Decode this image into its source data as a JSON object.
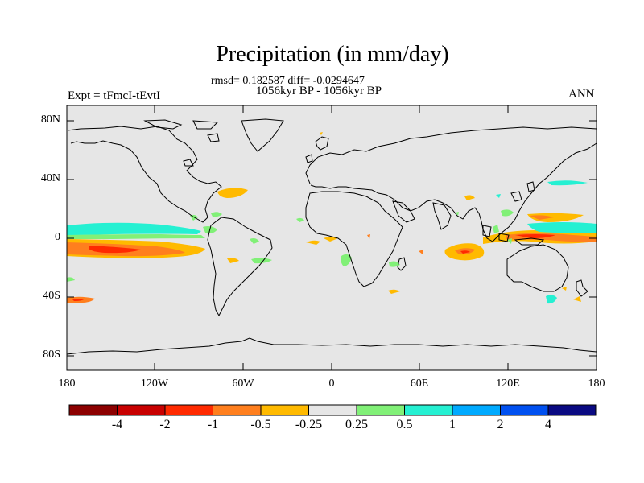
{
  "title": "Precipitation (in mm/day)",
  "stats": "rmsd= 0.182587 diff= -0.0294647",
  "period": "1056kyr BP - 1056kyr BP",
  "experiment": "Expt = tFmcI-tEvtI",
  "season": "ANN",
  "lat_labels": [
    "80N",
    "40N",
    "0",
    "40S",
    "80S"
  ],
  "lon_labels": [
    "180",
    "120W",
    "60W",
    "0",
    "60E",
    "120E",
    "180"
  ],
  "colorbar": {
    "colors": [
      "#8c0000",
      "#c80000",
      "#ff2a00",
      "#ff7f1e",
      "#ffba00",
      "#e6e6e6",
      "#81f077",
      "#25f0d2",
      "#00aaff",
      "#0050f0",
      "#0a0a82"
    ],
    "labels": [
      "-4",
      "-2",
      "-1",
      "-0.5",
      "-0.25",
      "0.25",
      "0.5",
      "1",
      "2",
      "4"
    ]
  },
  "colors": {
    "background": "#e6e6e6",
    "coast": "#000000"
  }
}
